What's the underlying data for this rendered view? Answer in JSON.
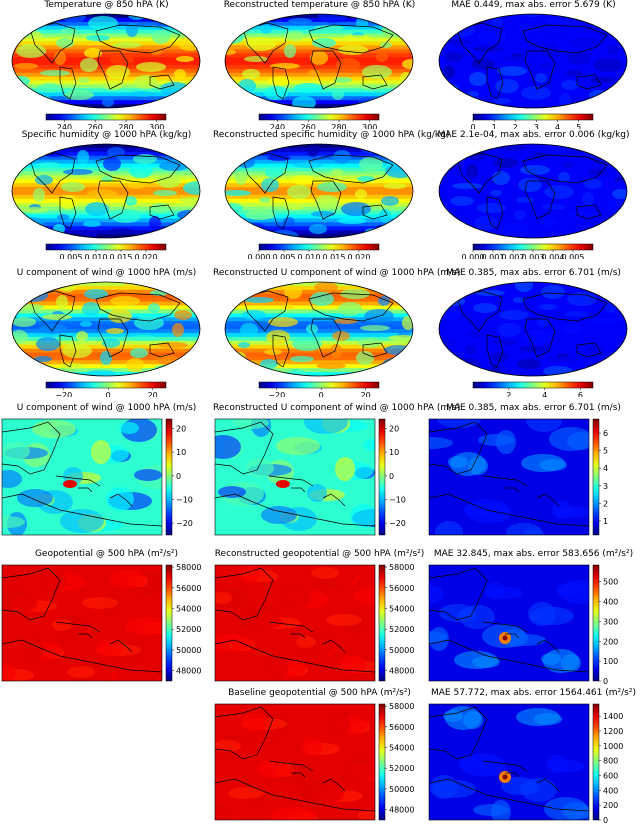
{
  "chart_data": [
    {
      "type": "heatmap",
      "title": "Temperature @ 850 hPA (K)",
      "map": "globe",
      "cmap": "jet",
      "colorbar": {
        "orientation": "horizontal",
        "range": [
          228,
          306
        ],
        "ticks": [
          "240",
          "260",
          "280",
          "300"
        ],
        "tick_values": [
          240,
          260,
          280,
          300
        ]
      }
    },
    {
      "type": "heatmap",
      "title": "Reconstructed temperature @ 850 hPA (K)",
      "map": "globe",
      "cmap": "jet",
      "colorbar": {
        "orientation": "horizontal",
        "range": [
          228,
          306
        ],
        "ticks": [
          "240",
          "260",
          "280",
          "300"
        ],
        "tick_values": [
          240,
          260,
          280,
          300
        ]
      }
    },
    {
      "type": "heatmap",
      "title": "MAE 0.449, max abs. error 5.679 (K)",
      "map": "globe",
      "cmap": "jet",
      "colorbar": {
        "orientation": "horizontal",
        "range": [
          0,
          5.679
        ],
        "ticks": [
          "0",
          "1",
          "2",
          "3",
          "4",
          "5"
        ],
        "tick_values": [
          0,
          1,
          2,
          3,
          4,
          5
        ]
      }
    },
    {
      "type": "heatmap",
      "title": "Specific humidity @ 1000 hPA (kg/kg)",
      "map": "globe",
      "cmap": "jet",
      "colorbar": {
        "orientation": "horizontal",
        "range": [
          0,
          0.024
        ],
        "ticks": [
          "0.005",
          "0.010",
          "0.015",
          "0.020"
        ],
        "tick_values": [
          0.005,
          0.01,
          0.015,
          0.02
        ]
      }
    },
    {
      "type": "heatmap",
      "title": "Reconstructed specific humidity @ 1000 hPA (kg/kg)",
      "map": "globe",
      "cmap": "jet",
      "colorbar": {
        "orientation": "horizontal",
        "range": [
          0,
          0.024
        ],
        "ticks": [
          "0.000",
          "0.005",
          "0.010",
          "0.015",
          "0.020"
        ],
        "tick_values": [
          0,
          0.005,
          0.01,
          0.015,
          0.02
        ]
      }
    },
    {
      "type": "heatmap",
      "title": "MAE 2.1e-04, max abs. error 0.006 (kg/kg)",
      "map": "globe",
      "cmap": "jet",
      "colorbar": {
        "orientation": "horizontal",
        "range": [
          0,
          0.006
        ],
        "ticks": [
          "0.000",
          "0.001",
          "0.002",
          "0.003",
          "0.004",
          "0.005"
        ],
        "tick_values": [
          0,
          0.001,
          0.002,
          0.003,
          0.004,
          0.005
        ]
      }
    },
    {
      "type": "heatmap",
      "title": "U component of wind @ 1000 hPA (m/s)",
      "map": "globe",
      "cmap": "jet",
      "colorbar": {
        "orientation": "horizontal",
        "range": [
          -28,
          26
        ],
        "ticks": [
          "−20",
          "0",
          "20"
        ],
        "tick_values": [
          -20,
          0,
          20
        ]
      }
    },
    {
      "type": "heatmap",
      "title": "Reconstructed U component of wind @ 1000 hPA (m/s)",
      "map": "globe",
      "cmap": "jet",
      "colorbar": {
        "orientation": "horizontal",
        "range": [
          -28,
          26
        ],
        "ticks": [
          "−20",
          "0",
          "20"
        ],
        "tick_values": [
          -20,
          0,
          20
        ]
      }
    },
    {
      "type": "heatmap",
      "title": "MAE 0.385, max abs. error 6.701 (m/s)",
      "map": "globe",
      "cmap": "jet",
      "colorbar": {
        "orientation": "horizontal",
        "range": [
          0,
          6.701
        ],
        "ticks": [
          "2",
          "4",
          "6"
        ],
        "tick_values": [
          2,
          4,
          6
        ]
      }
    },
    {
      "type": "heatmap",
      "title": "U component of wind @ 1000 hPA (m/s)",
      "map": "caribbean",
      "cmap": "jet",
      "colorbar": {
        "orientation": "vertical",
        "range": [
          -25,
          24
        ],
        "ticks": [
          "20",
          "10",
          "0",
          "−10",
          "−20"
        ],
        "tick_values": [
          20,
          10,
          0,
          -10,
          -20
        ]
      }
    },
    {
      "type": "heatmap",
      "title": "Reconstructed U component of wind @ 1000 hPA (m/s)",
      "map": "caribbean",
      "cmap": "jet",
      "colorbar": {
        "orientation": "vertical",
        "range": [
          -25,
          24
        ],
        "ticks": [
          "20",
          "10",
          "0",
          "−10",
          "−20"
        ],
        "tick_values": [
          20,
          10,
          0,
          -10,
          -20
        ]
      }
    },
    {
      "type": "heatmap",
      "title": "MAE 0.385, max abs. error 6.701 (m/s)",
      "map": "caribbean",
      "cmap": "jet",
      "colorbar": {
        "orientation": "vertical",
        "range": [
          0.2,
          6.8
        ],
        "ticks": [
          "6",
          "5",
          "4",
          "3",
          "2",
          "1"
        ],
        "tick_values": [
          6,
          5,
          4,
          3,
          2,
          1
        ]
      }
    },
    {
      "type": "heatmap",
      "title": "Geopotential @ 500 hPA (m²/s²)",
      "map": "caribbean",
      "cmap": "jet",
      "colorbar": {
        "orientation": "vertical",
        "range": [
          47000,
          58200
        ],
        "ticks": [
          "58000",
          "56000",
          "54000",
          "52000",
          "50000",
          "48000"
        ],
        "tick_values": [
          58000,
          56000,
          54000,
          52000,
          50000,
          48000
        ]
      }
    },
    {
      "type": "heatmap",
      "title": "Reconstructed geopotential @ 500 hPA (m²/s²)",
      "map": "caribbean",
      "cmap": "jet",
      "colorbar": {
        "orientation": "vertical",
        "range": [
          47000,
          58200
        ],
        "ticks": [
          "58000",
          "56000",
          "54000",
          "52000",
          "50000",
          "48000"
        ],
        "tick_values": [
          58000,
          56000,
          54000,
          52000,
          50000,
          48000
        ]
      }
    },
    {
      "type": "heatmap",
      "title": "MAE 32.845, max abs. error 583.656 (m²/s²)",
      "map": "caribbean",
      "cmap": "jet",
      "colorbar": {
        "orientation": "vertical",
        "range": [
          0,
          583.656
        ],
        "ticks": [
          "500",
          "400",
          "300",
          "200",
          "100",
          "0"
        ],
        "tick_values": [
          500,
          400,
          300,
          200,
          100,
          0
        ]
      }
    },
    {
      "type": "heatmap",
      "title": "Baseline geopotential @ 500 hPA (m²/s²)",
      "map": "caribbean",
      "cmap": "jet",
      "colorbar": {
        "orientation": "vertical",
        "range": [
          47000,
          58200
        ],
        "ticks": [
          "58000",
          "56000",
          "54000",
          "52000",
          "50000",
          "48000"
        ],
        "tick_values": [
          58000,
          56000,
          54000,
          52000,
          50000,
          48000
        ]
      }
    },
    {
      "type": "heatmap",
      "title": "MAE 57.772, max abs. error 1564.461 (m²/s²)",
      "map": "caribbean",
      "cmap": "jet",
      "colorbar": {
        "orientation": "vertical",
        "range": [
          0,
          1564.461
        ],
        "ticks": [
          "1400",
          "1200",
          "1000",
          "800",
          "600",
          "400",
          "200",
          "0"
        ],
        "tick_values": [
          1400,
          1200,
          1000,
          800,
          600,
          400,
          200,
          0
        ]
      }
    }
  ]
}
